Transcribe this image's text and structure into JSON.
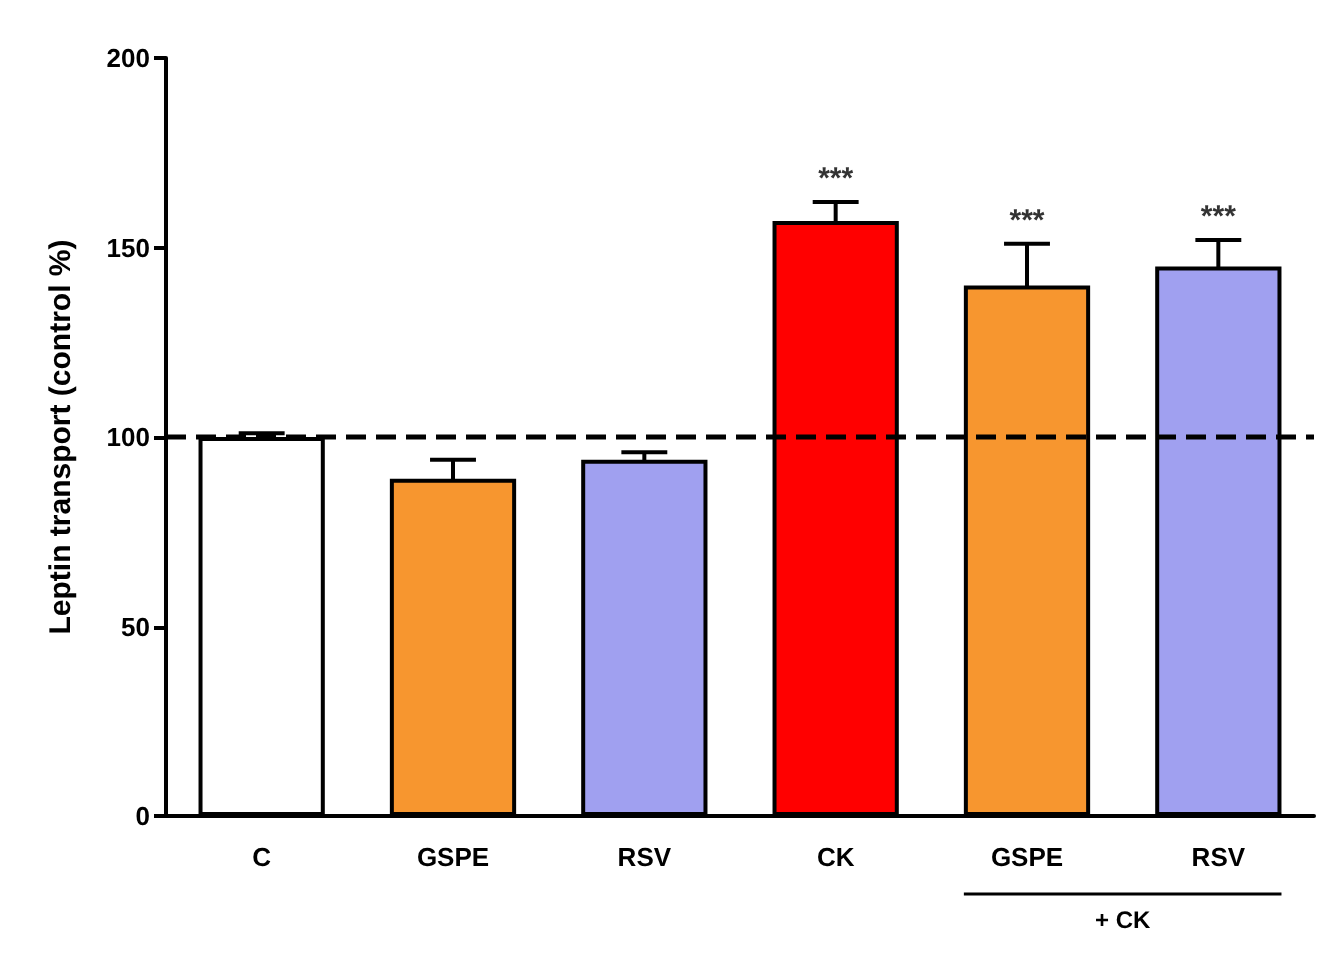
{
  "chart_data": {
    "type": "bar",
    "ylabel": "Leptin transport (control %)",
    "categories": [
      "C",
      "GSPE",
      "RSV",
      "CK",
      "GSPE",
      "RSV"
    ],
    "values": [
      100,
      89,
      94,
      157,
      140,
      145
    ],
    "errors": [
      1,
      5,
      2,
      5,
      11,
      7
    ],
    "colors": [
      "#ffffff",
      "#f7962f",
      "#a0a0f0",
      "#ff0000",
      "#f7962f",
      "#a0a0f0"
    ],
    "ylim": [
      0,
      200
    ],
    "yticks": [
      0,
      50,
      100,
      150,
      200
    ],
    "grid": false,
    "ref_lines": [
      {
        "axis": "y",
        "value": 100,
        "color": "#000000",
        "line_style": "dashed"
      }
    ],
    "annotations": [
      "***",
      "***",
      "***",
      "+ CK"
    ]
  }
}
